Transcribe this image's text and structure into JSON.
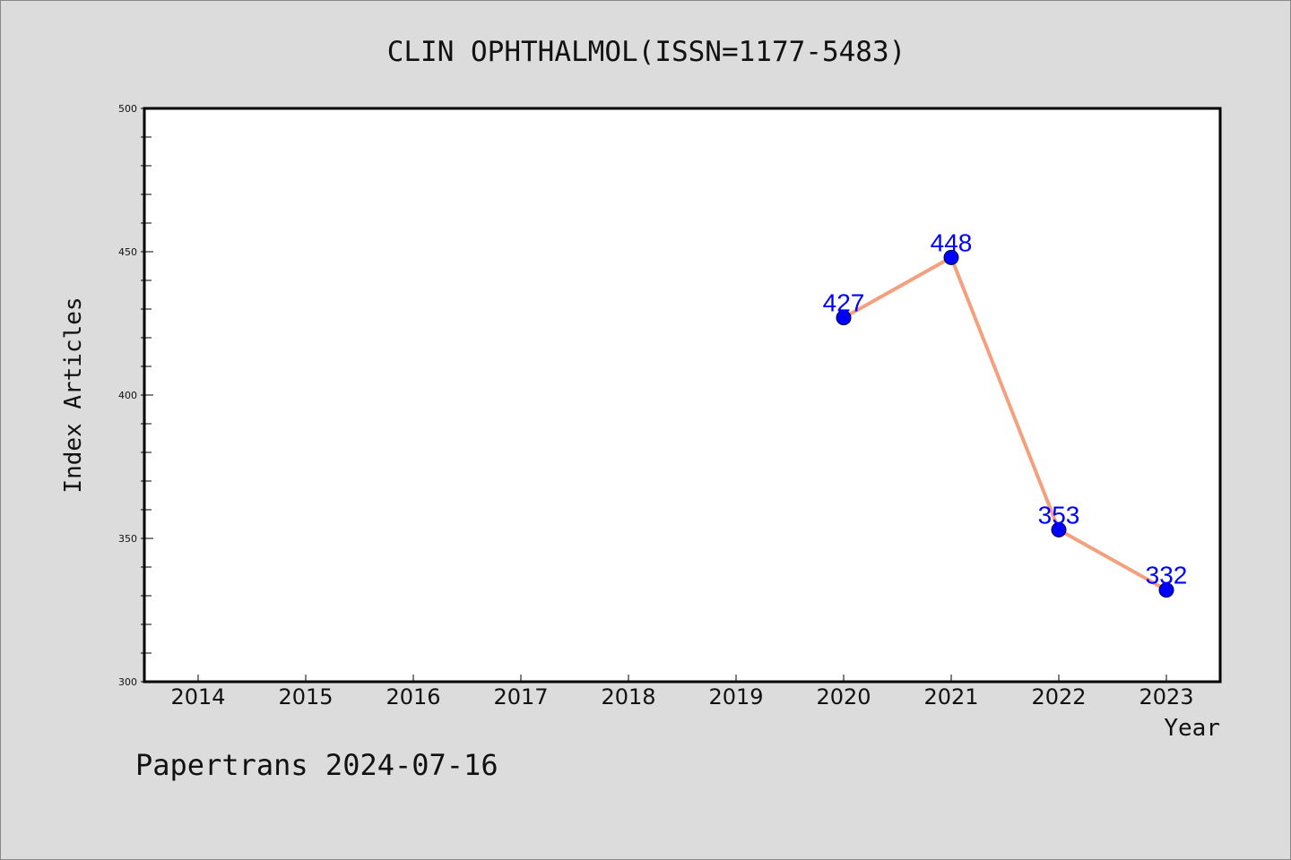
{
  "chart_data": {
    "type": "line",
    "title": "CLIN OPHTHALMOL(ISSN=1177-5483)",
    "xlabel": "Year",
    "ylabel": "Index Articles",
    "categories": [
      "2014",
      "2015",
      "2016",
      "2017",
      "2018",
      "2019",
      "2020",
      "2021",
      "2022",
      "2023"
    ],
    "ylim": [
      300,
      500
    ],
    "yticks": [
      300,
      350,
      400,
      450,
      500
    ],
    "grid": false,
    "series": [
      {
        "x": [
          "2020",
          "2021",
          "2022",
          "2023"
        ],
        "values": [
          427,
          448,
          353,
          332
        ],
        "labels": [
          "427",
          "448",
          "353",
          "332"
        ],
        "line_color": "#f4a07e",
        "marker_color": "#0000ff"
      }
    ]
  },
  "footer": "Papertrans 2024-07-16",
  "colors": {
    "background": "#dcdcdc",
    "plot_area": "#ffffff",
    "data_label": "#0000ff"
  }
}
